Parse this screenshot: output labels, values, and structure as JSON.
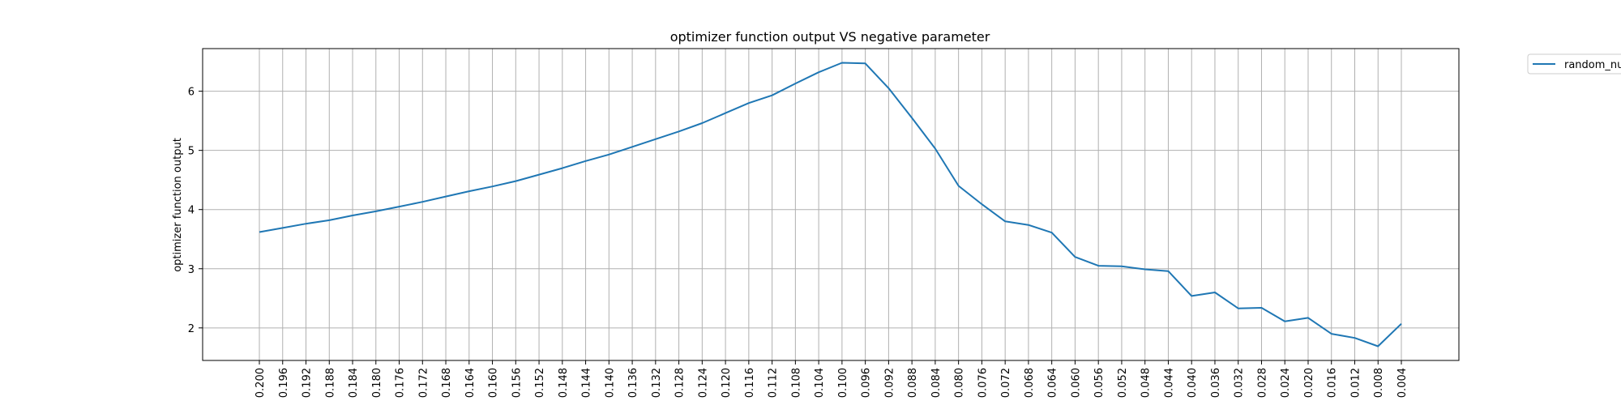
{
  "chart_data": {
    "type": "line",
    "title": "optimizer function output VS negative parameter",
    "xlabel": "",
    "ylabel": "optimizer function output",
    "ylim": [
      1.45,
      6.72
    ],
    "yticks": [
      2,
      3,
      4,
      5,
      6
    ],
    "grid": true,
    "legend_position": "outside-top-right",
    "x": [
      -0.2,
      -0.196,
      -0.192,
      -0.188,
      -0.184,
      -0.18,
      -0.176,
      -0.172,
      -0.168,
      -0.164,
      -0.16,
      -0.156,
      -0.152,
      -0.148,
      -0.144,
      -0.14,
      -0.136,
      -0.132,
      -0.128,
      -0.124,
      -0.12,
      -0.116,
      -0.112,
      -0.108,
      -0.104,
      -0.1,
      -0.096,
      -0.092,
      -0.088,
      -0.084,
      -0.08,
      -0.076,
      -0.072,
      -0.068,
      -0.064,
      -0.06,
      -0.056,
      -0.052,
      -0.048,
      -0.044,
      -0.04,
      -0.036,
      -0.032,
      -0.028,
      -0.024,
      -0.02,
      -0.016,
      -0.012,
      -0.008,
      -0.004
    ],
    "xtick_labels": [
      "0.200",
      "0.196",
      "0.192",
      "0.188",
      "0.184",
      "0.180",
      "0.176",
      "0.172",
      "0.168",
      "0.164",
      "0.160",
      "0.156",
      "0.152",
      "0.148",
      "0.144",
      "0.140",
      "0.136",
      "0.132",
      "0.128",
      "0.124",
      "0.120",
      "0.116",
      "0.112",
      "0.108",
      "0.104",
      "0.100",
      "0.096",
      "0.092",
      "0.088",
      "0.084",
      "0.080",
      "0.076",
      "0.072",
      "0.068",
      "0.064",
      "0.060",
      "0.056",
      "0.052",
      "0.048",
      "0.044",
      "0.040",
      "0.036",
      "0.032",
      "0.028",
      "0.024",
      "0.020",
      "0.016",
      "0.012",
      "0.008",
      "0.004"
    ],
    "series": [
      {
        "name": "random_nu",
        "color": "#1f77b4",
        "values": [
          3.62,
          3.69,
          3.76,
          3.82,
          3.9,
          3.97,
          4.05,
          4.13,
          4.22,
          4.31,
          4.39,
          4.48,
          4.59,
          4.7,
          4.82,
          4.93,
          5.06,
          5.19,
          5.32,
          5.46,
          5.63,
          5.8,
          5.93,
          6.13,
          6.32,
          6.48,
          6.47,
          6.05,
          5.55,
          5.03,
          4.4,
          4.09,
          3.8,
          3.74,
          3.61,
          3.2,
          3.05,
          3.04,
          2.99,
          2.96,
          2.54,
          2.6,
          2.33,
          2.34,
          2.11,
          2.17,
          1.9,
          1.83,
          1.69,
          2.07
        ]
      }
    ]
  }
}
